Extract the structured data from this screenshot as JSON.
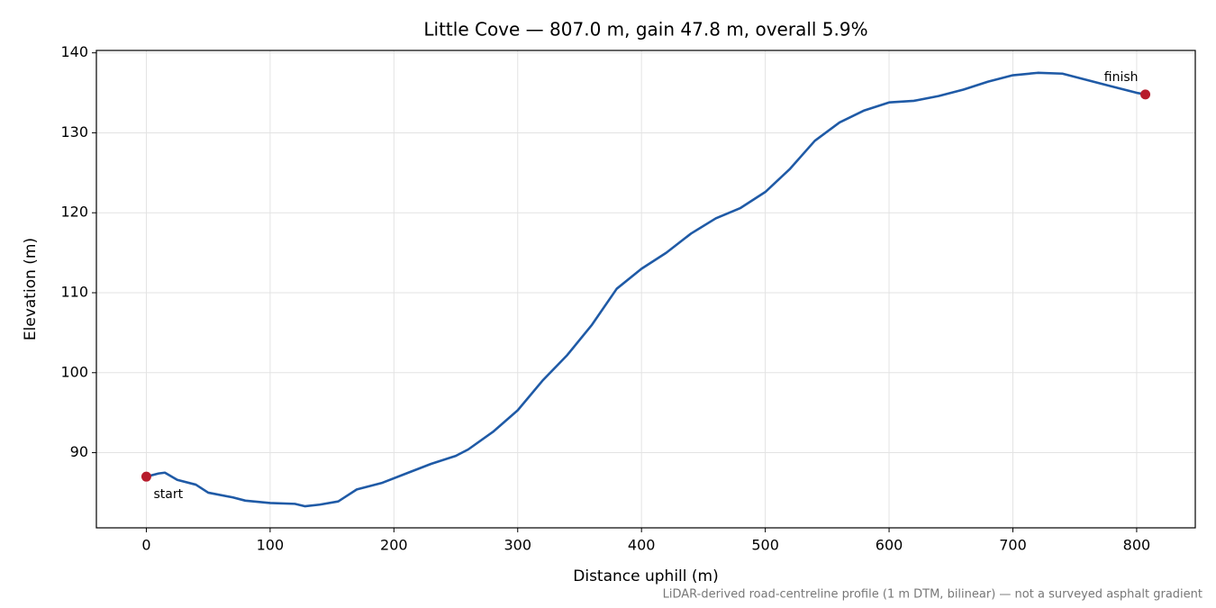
{
  "chart_data": {
    "type": "line",
    "title": "Little Cove — 807.0 m, gain 47.8 m, overall 5.9%",
    "xlabel": "Distance uphill (m)",
    "ylabel": "Elevation (m)",
    "footnote": "LiDAR-derived road-centreline profile (1 m DTM, bilinear) — not a surveyed asphalt gradient",
    "annotations": [
      "start",
      "finish"
    ],
    "grid": true,
    "xlim": [
      -40.35,
      847.35
    ],
    "ylim": [
      80.6,
      140.3
    ],
    "xticks": [
      0,
      100,
      200,
      300,
      400,
      500,
      600,
      700,
      800
    ],
    "yticks": [
      90,
      100,
      110,
      120,
      130,
      140
    ],
    "marker_color": "#b71c2c",
    "series": [
      {
        "color": "#1f5aa6",
        "x": [
          0,
          10,
          15,
          25,
          40,
          50,
          70,
          80,
          100,
          120,
          128,
          140,
          155,
          170,
          190,
          210,
          230,
          250,
          260,
          280,
          300,
          320,
          340,
          360,
          380,
          400,
          420,
          440,
          460,
          480,
          500,
          520,
          540,
          560,
          580,
          600,
          620,
          640,
          660,
          680,
          700,
          720,
          740,
          760,
          780,
          800,
          807
        ],
        "values": [
          87.0,
          87.4,
          87.5,
          86.6,
          86.0,
          85.0,
          84.4,
          84.0,
          83.7,
          83.6,
          83.3,
          83.5,
          83.9,
          85.4,
          86.2,
          87.4,
          88.6,
          89.6,
          90.4,
          92.6,
          95.3,
          99.0,
          102.2,
          106.0,
          110.5,
          113.0,
          115.0,
          117.4,
          119.3,
          120.6,
          122.6,
          125.5,
          129.0,
          131.3,
          132.8,
          133.8,
          134.0,
          134.6,
          135.4,
          136.4,
          137.2,
          137.5,
          137.4,
          136.6,
          135.8,
          135.0,
          134.8
        ]
      }
    ]
  }
}
